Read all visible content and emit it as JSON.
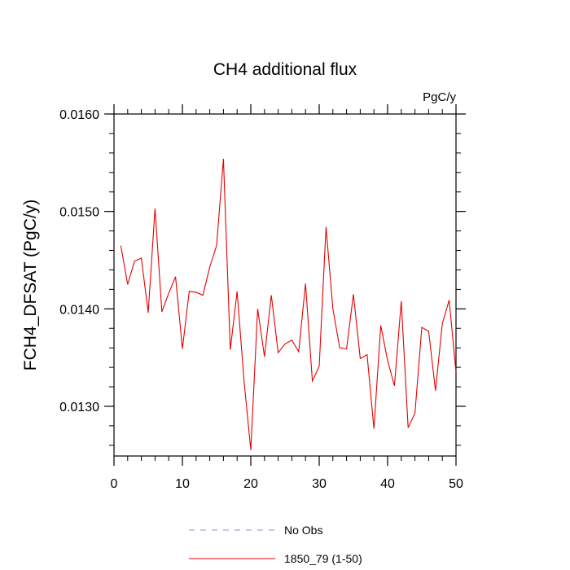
{
  "chart_data": {
    "type": "line",
    "title": "CH4 additional flux",
    "units_label": "PgC/y",
    "xlabel": "",
    "ylabel": "FCH4_DFSAT  (PgC/y)",
    "xlim": [
      0,
      50
    ],
    "ylim": [
      0.01249,
      0.016
    ],
    "x_major_ticks": [
      0,
      10,
      20,
      30,
      40,
      50
    ],
    "x_tick_labels": [
      "0",
      "10",
      "20",
      "30",
      "40",
      "50"
    ],
    "y_major_ticks": [
      0.013,
      0.014,
      0.015,
      0.016
    ],
    "y_tick_labels": [
      "0.0130",
      "0.0140",
      "0.0150",
      "0.0160"
    ],
    "grid": false,
    "legend_position": "bottom",
    "legend": [
      {
        "label": "No Obs",
        "color": "#8f8fd0",
        "style": "dashed"
      },
      {
        "label": "1850_79 (1-50)",
        "color": "#e60000",
        "style": "solid"
      }
    ],
    "series": [
      {
        "name": "1850_79 (1-50)",
        "color": "#e60000",
        "x": [
          1,
          2,
          3,
          4,
          5,
          6,
          7,
          8,
          9,
          10,
          11,
          12,
          13,
          14,
          15,
          16,
          17,
          18,
          19,
          20,
          21,
          22,
          23,
          24,
          25,
          26,
          27,
          28,
          29,
          30,
          31,
          32,
          33,
          34,
          35,
          36,
          37,
          38,
          39,
          40,
          41,
          42,
          43,
          44,
          45,
          46,
          47,
          48,
          49,
          50
        ],
        "values": [
          0.01465,
          0.01425,
          0.01449,
          0.01452,
          0.01396,
          0.01503,
          0.01397,
          0.01416,
          0.01433,
          0.01359,
          0.01418,
          0.01417,
          0.01414,
          0.01443,
          0.01465,
          0.01554,
          0.01358,
          0.01418,
          0.01327,
          0.01255,
          0.014,
          0.01351,
          0.01414,
          0.01355,
          0.01364,
          0.01368,
          0.01356,
          0.01426,
          0.01326,
          0.01341,
          0.01484,
          0.014,
          0.0136,
          0.01359,
          0.01415,
          0.01349,
          0.01353,
          0.01277,
          0.01383,
          0.01347,
          0.01321,
          0.01408,
          0.01278,
          0.01293,
          0.01381,
          0.01377,
          0.01316,
          0.01385,
          0.01409,
          0.01335
        ]
      }
    ]
  }
}
